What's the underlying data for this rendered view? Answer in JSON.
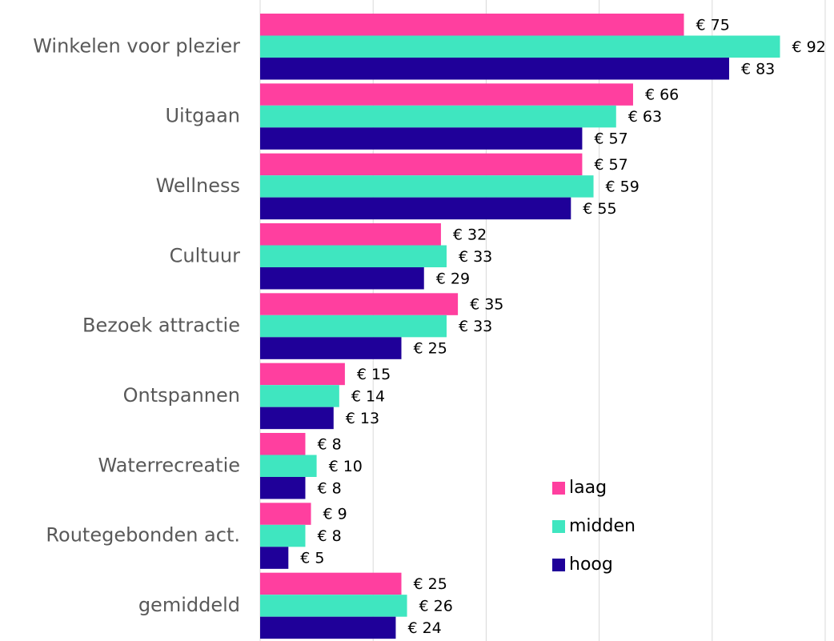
{
  "chart_data": {
    "type": "bar",
    "orientation": "horizontal",
    "categories": [
      "Winkelen voor plezier",
      "Uitgaan",
      "Wellness",
      "Cultuur",
      "Bezoek attractie",
      "Ontspannen",
      "Waterrecreatie",
      "Routegebonden act.",
      "gemiddeld"
    ],
    "series": [
      {
        "name": "laag",
        "color": "#ff3f9f",
        "values": [
          75,
          66,
          57,
          32,
          35,
          15,
          8,
          9,
          25
        ],
        "value_labels": [
          "€ 75",
          "€ 66",
          "€ 57",
          "€ 32",
          "€ 35",
          "€ 15",
          "€ 8",
          "€ 9",
          "€ 25"
        ]
      },
      {
        "name": "midden",
        "color": "#3fe6c0",
        "values": [
          92,
          63,
          59,
          33,
          33,
          14,
          10,
          8,
          26
        ],
        "value_labels": [
          "€ 92",
          "€ 63",
          "€ 59",
          "€ 33",
          "€ 33",
          "€ 14",
          "€ 10",
          "€ 8",
          "€ 26"
        ]
      },
      {
        "name": "hoog",
        "color": "#1f0099",
        "values": [
          83,
          57,
          55,
          29,
          25,
          13,
          8,
          5,
          24
        ],
        "value_labels": [
          "€ 83",
          "€ 57",
          "€ 55",
          "€ 29",
          "€ 25",
          "€ 13",
          "€ 8",
          "€ 5",
          "€ 24"
        ]
      }
    ],
    "xlim": [
      0,
      100
    ],
    "xticks": [
      0,
      20,
      40,
      60,
      80,
      100
    ],
    "grid": true,
    "legend": "lower right"
  }
}
